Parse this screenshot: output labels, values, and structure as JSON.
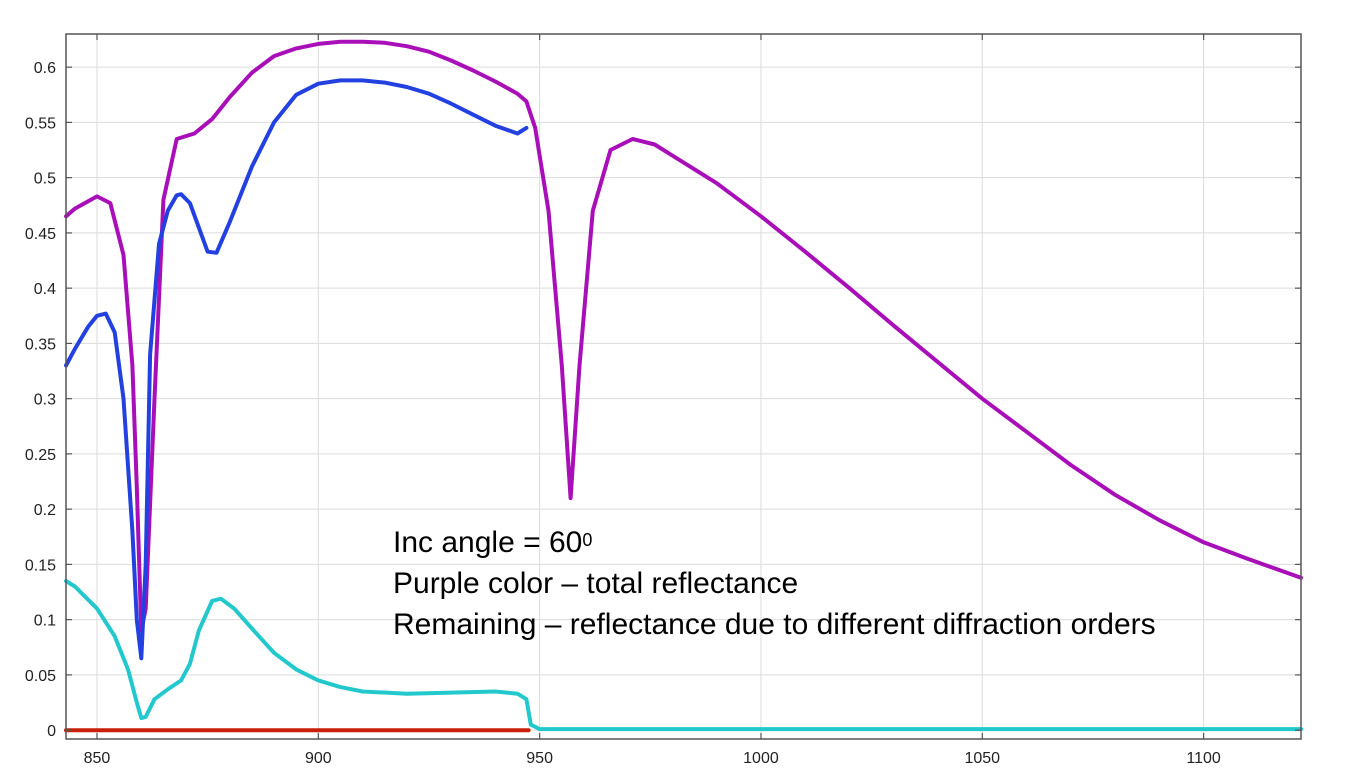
{
  "chart_data": {
    "type": "line",
    "xlim": [
      843,
      1122
    ],
    "ylim": [
      -0.008,
      0.63
    ],
    "x_ticks": [
      850,
      900,
      950,
      1000,
      1050,
      1100
    ],
    "y_ticks": [
      0,
      0.05,
      0.1,
      0.15,
      0.2,
      0.25,
      0.3,
      0.35,
      0.4,
      0.45,
      0.5,
      0.55,
      0.6
    ],
    "grid": true,
    "annotation": {
      "line1_prefix": "Inc angle = 60",
      "line1_sup": "0",
      "line2": "Purple color – total reflectance",
      "line3": "Remaining – reflectance due to different diffraction orders"
    },
    "series": [
      {
        "color": "#a80fb8",
        "x": [
          843,
          845,
          850,
          853,
          856,
          858,
          859,
          860,
          861,
          863,
          865,
          868,
          872,
          876,
          880,
          885,
          890,
          895,
          900,
          905,
          910,
          915,
          920,
          925,
          930,
          935,
          940,
          945,
          947,
          949,
          952,
          955,
          957,
          959,
          962,
          966,
          971,
          976,
          980,
          990,
          1000,
          1010,
          1020,
          1030,
          1040,
          1050,
          1060,
          1070,
          1080,
          1090,
          1100,
          1110,
          1122
        ],
        "y": [
          0.465,
          0.472,
          0.483,
          0.477,
          0.43,
          0.33,
          0.22,
          0.09,
          0.11,
          0.3,
          0.48,
          0.535,
          0.54,
          0.553,
          0.573,
          0.595,
          0.61,
          0.617,
          0.621,
          0.623,
          0.623,
          0.622,
          0.619,
          0.614,
          0.606,
          0.597,
          0.587,
          0.576,
          0.569,
          0.545,
          0.47,
          0.33,
          0.21,
          0.33,
          0.47,
          0.525,
          0.535,
          0.53,
          0.52,
          0.495,
          0.465,
          0.433,
          0.4,
          0.366,
          0.333,
          0.3,
          0.27,
          0.24,
          0.213,
          0.19,
          0.17,
          0.155,
          0.138
        ]
      },
      {
        "color": "#2340e0",
        "x": [
          843,
          845,
          848,
          850,
          852,
          854,
          856,
          858,
          859,
          860,
          861,
          862,
          864,
          866,
          868,
          869,
          871,
          873,
          875,
          877,
          880,
          885,
          890,
          895,
          900,
          905,
          910,
          915,
          920,
          925,
          930,
          935,
          940,
          945,
          947
        ],
        "y": [
          0.33,
          0.345,
          0.365,
          0.375,
          0.377,
          0.36,
          0.3,
          0.18,
          0.1,
          0.065,
          0.15,
          0.34,
          0.44,
          0.47,
          0.484,
          0.485,
          0.477,
          0.455,
          0.433,
          0.432,
          0.46,
          0.51,
          0.55,
          0.575,
          0.585,
          0.588,
          0.588,
          0.586,
          0.582,
          0.576,
          0.567,
          0.557,
          0.547,
          0.54,
          0.545
        ]
      },
      {
        "color": "#22c8cc",
        "x": [
          843,
          845,
          850,
          854,
          857,
          859,
          860,
          861,
          863,
          866,
          869,
          871,
          873,
          876,
          878,
          881,
          885,
          890,
          895,
          900,
          905,
          910,
          920,
          930,
          940,
          945,
          947,
          948,
          950,
          1000,
          1050,
          1100,
          1122
        ],
        "y": [
          0.135,
          0.13,
          0.11,
          0.085,
          0.055,
          0.025,
          0.011,
          0.012,
          0.028,
          0.037,
          0.045,
          0.06,
          0.09,
          0.117,
          0.119,
          0.11,
          0.092,
          0.07,
          0.055,
          0.045,
          0.039,
          0.035,
          0.033,
          0.034,
          0.035,
          0.033,
          0.028,
          0.005,
          0.001,
          0.001,
          0.001,
          0.001,
          0.001
        ]
      },
      {
        "color": "#c81e0a",
        "x": [
          843,
          947.5
        ],
        "y": [
          0.0,
          0.0
        ]
      }
    ]
  }
}
